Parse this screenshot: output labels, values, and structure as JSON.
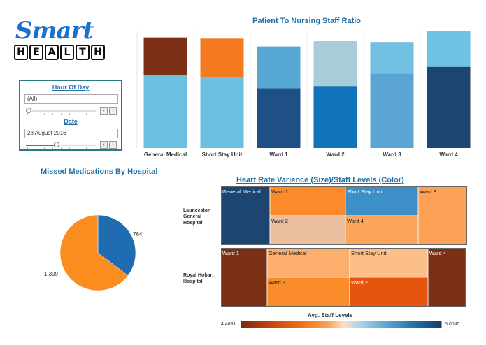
{
  "logo": {
    "smart": "Smart",
    "health_letters": [
      "H",
      "E",
      "A",
      "L",
      "T",
      "H"
    ]
  },
  "filters": {
    "hour_of_day": {
      "title": "Hour Of Day",
      "value": "(All)",
      "slider_value": 0
    },
    "date": {
      "title": "Date",
      "value": "28 August 2016",
      "slider_value": 0.42
    },
    "prev_icon": "chevron-left-icon",
    "next_icon": "chevron-right-icon",
    "prev_glyph": "‹",
    "next_glyph": "›"
  },
  "titles": {
    "ratio": "Patient To Nursing Staff Ratio",
    "missed": "Missed Medications By Hospital",
    "heart": "Heart Rate Varience (Size)/Staff Levels (Color)"
  },
  "chart_data": [
    {
      "type": "bar",
      "title": "Patient To Nursing Staff Ratio",
      "stacked": true,
      "categories": [
        "General Medical",
        "Short Stay Unit",
        "Ward 1",
        "Ward 2",
        "Ward 3",
        "Ward 4"
      ],
      "segments": [
        {
          "bottom": 0.65,
          "top": 0.33,
          "bottom_color": "#6bbfe0",
          "top_color": "#7b2f14"
        },
        {
          "bottom": 0.63,
          "top": 0.34,
          "bottom_color": "#6bbfe0",
          "top_color": "#f47a20"
        },
        {
          "bottom": 0.53,
          "top": 0.37,
          "bottom_color": "#1e4f85",
          "top_color": "#57a8d4"
        },
        {
          "bottom": 0.55,
          "top": 0.4,
          "bottom_color": "#1273b8",
          "top_color": "#a9ccd9"
        },
        {
          "bottom": 0.66,
          "top": 0.28,
          "bottom_color": "#5aa5d4",
          "top_color": "#72c0e2"
        },
        {
          "bottom": 0.72,
          "top": 0.32,
          "bottom_color": "#1d4572",
          "top_color": "#6ec2e4"
        }
      ],
      "ylim": [
        0,
        1.04
      ],
      "grid": false
    },
    {
      "type": "pie",
      "title": "Missed Medications By Hospital",
      "labels": [
        "764",
        "1,399"
      ],
      "values": [
        764,
        1399
      ],
      "colors": [
        "#1f6cb0",
        "#fb8c1e"
      ]
    },
    {
      "type": "heatmap",
      "title": "Heart Rate Varience (Size)/Staff Levels (Color)",
      "groups": [
        {
          "hospital": "Launceston\nGeneral\nHospital",
          "cells": [
            {
              "label": "General Medical",
              "color": "#1d4572"
            },
            {
              "label": "Ward 1",
              "color": "#fb8a2c"
            },
            {
              "label": "Short Stay Unit",
              "color": "#3d8fc8"
            },
            {
              "label": "Ward 3",
              "color": "#fca257"
            },
            {
              "label": "Ward 2",
              "color": "#e9bf9f"
            },
            {
              "label": "Ward 4",
              "color": "#fca55c"
            }
          ]
        },
        {
          "hospital": "Royal Hobart\nHospital",
          "cells": [
            {
              "label": "Ward 1",
              "color": "#7b2f14"
            },
            {
              "label": "General Medical",
              "color": "#fcae6c"
            },
            {
              "label": "Short Stay Unit",
              "color": "#fbbf87"
            },
            {
              "label": "Ward 4",
              "color": "#7b2f14"
            },
            {
              "label": "Ward 3",
              "color": "#fb8c2c"
            },
            {
              "label": "Ward 2",
              "color": "#e6540f"
            }
          ]
        }
      ],
      "legend": {
        "title": "Avg. Staff Levels",
        "min": "4.4681",
        "max": "5.0045"
      }
    }
  ]
}
